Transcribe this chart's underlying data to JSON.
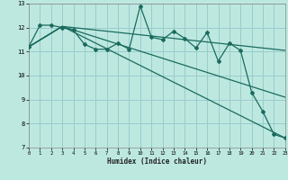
{
  "xlabel": "Humidex (Indice chaleur)",
  "xlim": [
    0,
    23
  ],
  "ylim": [
    7,
    13
  ],
  "yticks": [
    7,
    8,
    9,
    10,
    11,
    12,
    13
  ],
  "xticks": [
    0,
    1,
    2,
    3,
    4,
    5,
    6,
    7,
    8,
    9,
    10,
    11,
    12,
    13,
    14,
    15,
    16,
    17,
    18,
    19,
    20,
    21,
    22,
    23
  ],
  "bg_color": "#bde8e0",
  "grid_color": "#99cccc",
  "line_color": "#1a6b5e",
  "line1_x": [
    0,
    1,
    2,
    3,
    4,
    5,
    6,
    7,
    8,
    9,
    10,
    11,
    12,
    13,
    14,
    15,
    16,
    17,
    18,
    19,
    20,
    21,
    22,
    23
  ],
  "line1_y": [
    11.2,
    12.1,
    12.1,
    12.0,
    11.9,
    11.3,
    11.1,
    11.1,
    11.35,
    11.1,
    12.9,
    11.6,
    11.5,
    11.85,
    11.55,
    11.15,
    11.8,
    10.6,
    11.35,
    11.05,
    9.3,
    8.5,
    7.55,
    7.4
  ],
  "line2_x": [
    0,
    3,
    23
  ],
  "line2_y": [
    11.2,
    12.05,
    7.4
  ],
  "line3_x": [
    0,
    3,
    23
  ],
  "line3_y": [
    11.2,
    12.05,
    11.05
  ],
  "line4_x": [
    0,
    3,
    23
  ],
  "line4_y": [
    11.2,
    12.05,
    9.1
  ]
}
